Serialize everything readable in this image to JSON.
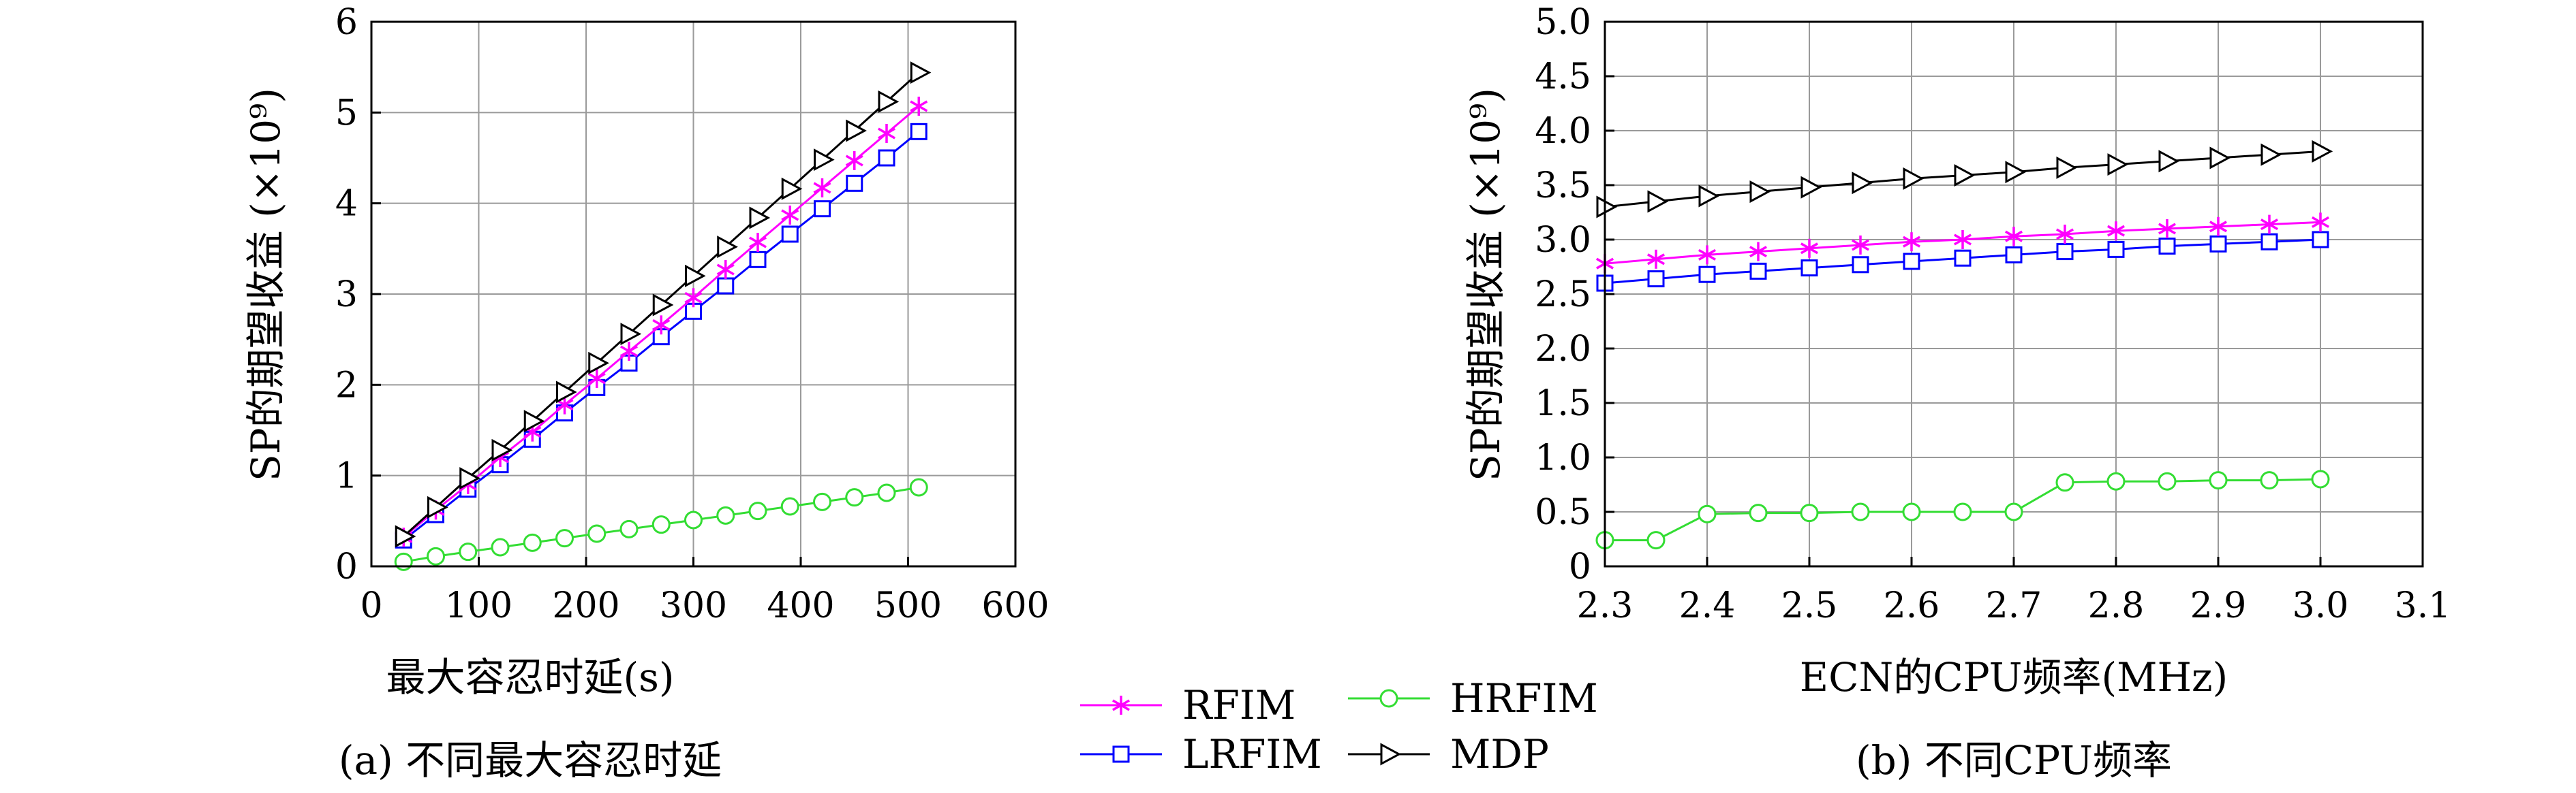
{
  "colors": {
    "RFIM": "#ff00ff",
    "LRFIM": "#0000ff",
    "HRFIM": "#33dd33",
    "MDP": "#000000"
  },
  "legend": [
    {
      "name": "RFIM",
      "marker": "asterisk"
    },
    {
      "name": "HRFIM",
      "marker": "circle"
    },
    {
      "name": "LRFIM",
      "marker": "square"
    },
    {
      "name": "MDP",
      "marker": "triangle-right"
    }
  ],
  "chart_data": [
    {
      "type": "line",
      "caption": "(a) 不同最大容忍时延",
      "xlabel": "最大容忍时延(s)",
      "ylabel": "SP的期望收益 (×10⁹)",
      "xlim": [
        0,
        600
      ],
      "ylim": [
        0,
        6
      ],
      "xticks": [
        "0",
        "100",
        "200",
        "300",
        "400",
        "500",
        "600"
      ],
      "yticks": [
        "0",
        "1",
        "2",
        "3",
        "4",
        "5",
        "6"
      ],
      "grid": true,
      "x": [
        30,
        60,
        90,
        120,
        150,
        180,
        210,
        240,
        270,
        300,
        330,
        360,
        390,
        420,
        450,
        480,
        510
      ],
      "series": [
        {
          "name": "RFIM",
          "values": [
            0.32,
            0.62,
            0.9,
            1.2,
            1.48,
            1.78,
            2.07,
            2.37,
            2.66,
            2.96,
            3.27,
            3.57,
            3.87,
            4.17,
            4.47,
            4.77,
            5.07
          ]
        },
        {
          "name": "LRFIM",
          "values": [
            0.29,
            0.57,
            0.85,
            1.12,
            1.4,
            1.69,
            1.97,
            2.24,
            2.53,
            2.81,
            3.09,
            3.38,
            3.66,
            3.94,
            4.22,
            4.5,
            4.79
          ]
        },
        {
          "name": "HRFIM",
          "values": [
            0.05,
            0.11,
            0.16,
            0.21,
            0.26,
            0.31,
            0.36,
            0.41,
            0.46,
            0.51,
            0.56,
            0.61,
            0.66,
            0.71,
            0.76,
            0.81,
            0.87
          ]
        },
        {
          "name": "MDP",
          "values": [
            0.33,
            0.65,
            0.97,
            1.28,
            1.6,
            1.92,
            2.24,
            2.56,
            2.88,
            3.2,
            3.52,
            3.84,
            4.16,
            4.48,
            4.8,
            5.12,
            5.44
          ]
        }
      ]
    },
    {
      "type": "line",
      "caption": "(b) 不同CPU频率",
      "xlabel": "ECN的CPU频率(MHz)",
      "ylabel": "SP的期望收益 (×10⁹)",
      "xlim": [
        2.3,
        3.1
      ],
      "ylim": [
        0,
        5
      ],
      "xticks": [
        "2.3",
        "2.4",
        "2.5",
        "2.6",
        "2.7",
        "2.8",
        "2.9",
        "3.0",
        "3.1"
      ],
      "yticks": [
        "0",
        "0.5",
        "1.0",
        "1.5",
        "2.0",
        "2.5",
        "3.0",
        "3.5",
        "4.0",
        "4.5",
        "5.0"
      ],
      "grid": true,
      "x": [
        2.3,
        2.35,
        2.4,
        2.45,
        2.5,
        2.55,
        2.6,
        2.65,
        2.7,
        2.75,
        2.8,
        2.85,
        2.9,
        2.95,
        3.0
      ],
      "series": [
        {
          "name": "RFIM",
          "values": [
            2.78,
            2.82,
            2.86,
            2.89,
            2.92,
            2.95,
            2.98,
            3.0,
            3.03,
            3.05,
            3.08,
            3.1,
            3.12,
            3.14,
            3.16
          ]
        },
        {
          "name": "LRFIM",
          "values": [
            2.6,
            2.64,
            2.68,
            2.71,
            2.74,
            2.77,
            2.8,
            2.83,
            2.86,
            2.89,
            2.91,
            2.94,
            2.96,
            2.98,
            3.0
          ]
        },
        {
          "name": "HRFIM",
          "values": [
            0.24,
            0.24,
            0.48,
            0.49,
            0.49,
            0.5,
            0.5,
            0.5,
            0.5,
            0.77,
            0.78,
            0.78,
            0.79,
            0.79,
            0.8
          ]
        },
        {
          "name": "MDP",
          "values": [
            3.3,
            3.35,
            3.4,
            3.44,
            3.48,
            3.52,
            3.56,
            3.59,
            3.62,
            3.66,
            3.69,
            3.72,
            3.75,
            3.78,
            3.81
          ]
        }
      ]
    }
  ]
}
